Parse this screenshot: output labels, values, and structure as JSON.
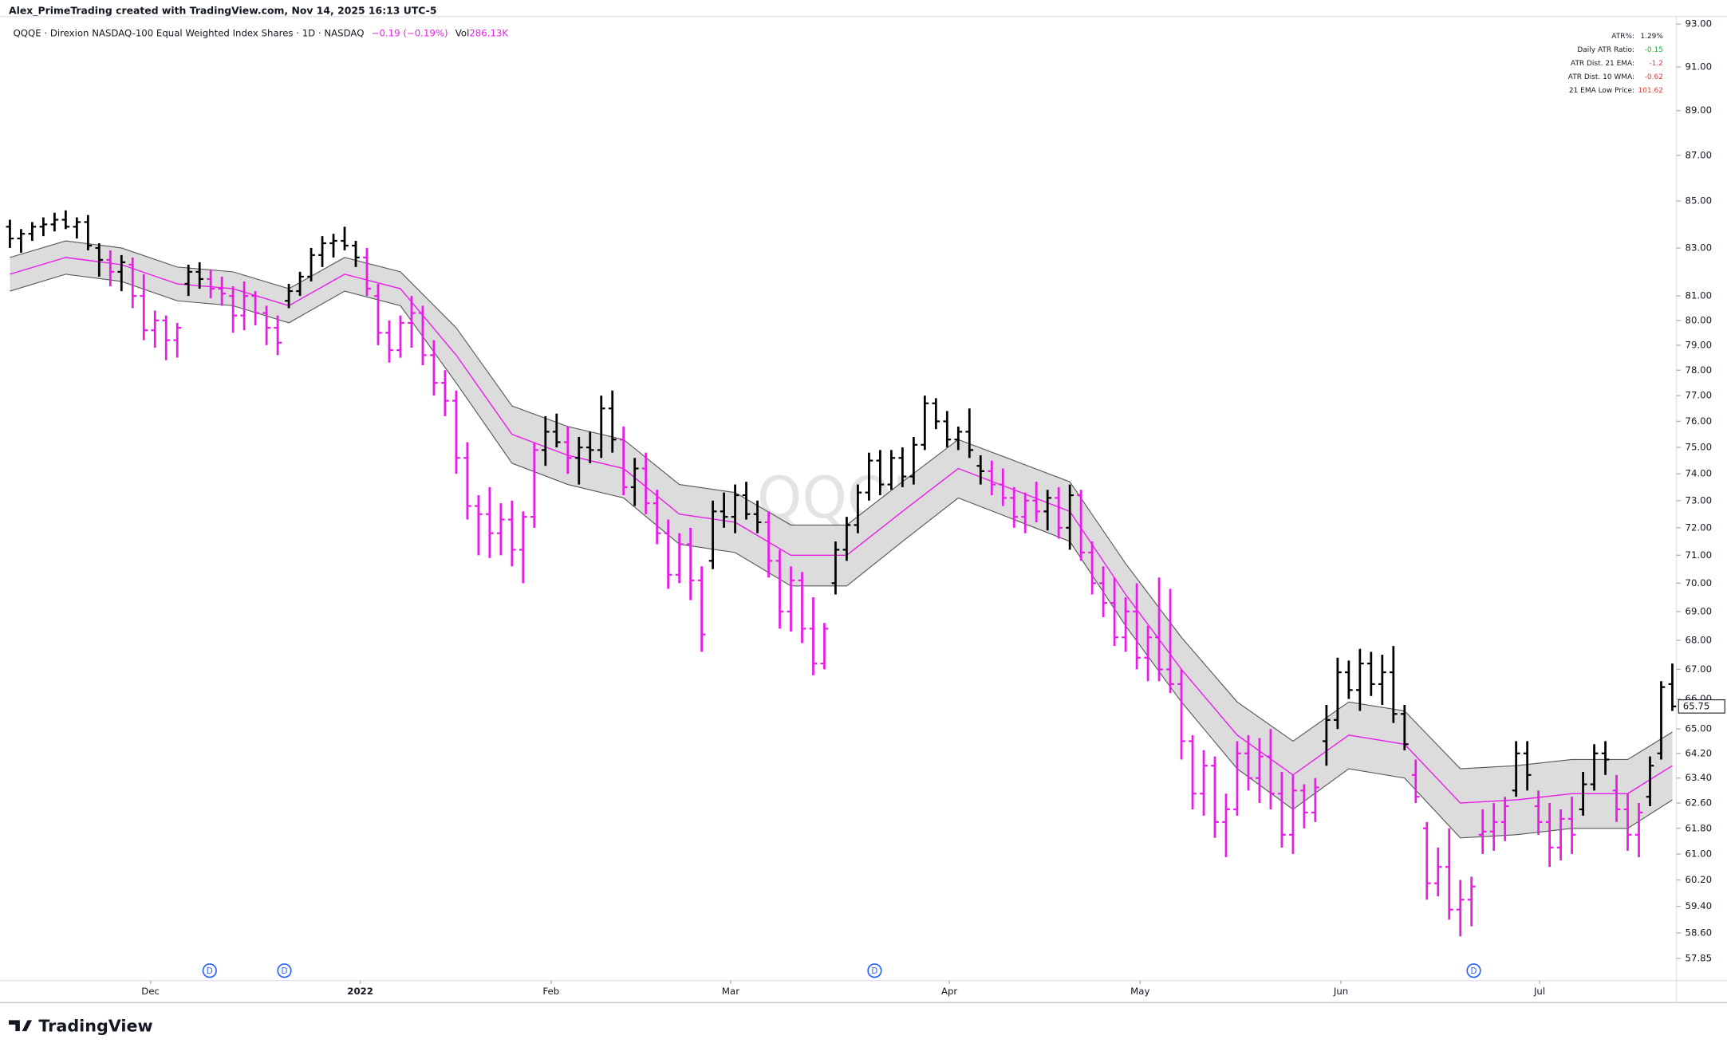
{
  "chart_data": {
    "type": "ohlc",
    "header": "Alex_PrimeTrading created with TradingView.com, Nov 14, 2025 16:13 UTC-5",
    "legend_title": "QQQE · Direxion NASDAQ-100 Equal Weighted Index Shares · 1D · NASDAQ",
    "change": "−0.19 (−0.19%)",
    "volume_label": "Vol",
    "volume": "286.13K",
    "watermark": "QQQE",
    "footer": "TradingView",
    "log_scale": true,
    "up_color": "#000000",
    "down_color": "#e81ce8",
    "band_color": "#dcdcdc",
    "mid_color": "#e81ce8",
    "ylim": [
      57.2,
      93.36
    ],
    "yticks": [
      {
        "value": 93,
        "label": "93.00"
      },
      {
        "value": 91,
        "label": "91.00"
      },
      {
        "value": 89,
        "label": "89.00"
      },
      {
        "value": 87,
        "label": "87.00"
      },
      {
        "value": 85,
        "label": "85.00"
      },
      {
        "value": 83,
        "label": "83.00"
      },
      {
        "value": 81,
        "label": "81.00"
      },
      {
        "value": 80,
        "label": "80.00"
      },
      {
        "value": 79,
        "label": "79.00"
      },
      {
        "value": 78,
        "label": "78.00"
      },
      {
        "value": 77,
        "label": "77.00"
      },
      {
        "value": 76,
        "label": "76.00"
      },
      {
        "value": 75,
        "label": "75.00"
      },
      {
        "value": 74,
        "label": "74.00"
      },
      {
        "value": 73,
        "label": "73.00"
      },
      {
        "value": 72,
        "label": "72.00"
      },
      {
        "value": 71,
        "label": "71.00"
      },
      {
        "value": 70,
        "label": "70.00"
      },
      {
        "value": 69,
        "label": "69.00"
      },
      {
        "value": 68,
        "label": "68.00"
      },
      {
        "value": 67,
        "label": "67.00"
      },
      {
        "value": 66,
        "label": "66.00"
      },
      {
        "value": 65,
        "label": "65.00"
      },
      {
        "value": 64.2,
        "label": "64.20"
      },
      {
        "value": 63.4,
        "label": "63.40"
      },
      {
        "value": 62.6,
        "label": "62.60"
      },
      {
        "value": 61.8,
        "label": "61.80"
      },
      {
        "value": 61,
        "label": "61.00"
      },
      {
        "value": 60.2,
        "label": "60.20"
      },
      {
        "value": 59.4,
        "label": "59.40"
      },
      {
        "value": 58.6,
        "label": "58.60"
      },
      {
        "value": 57.85,
        "label": "57.85"
      }
    ],
    "xlim": [
      -0.5,
      149.7
    ],
    "xticks": [
      {
        "value": 12.6,
        "label": "Dec"
      },
      {
        "value": 31.4,
        "label": "2022"
      },
      {
        "value": 48.5,
        "label": "Feb"
      },
      {
        "value": 64.6,
        "label": "Mar"
      },
      {
        "value": 84.2,
        "label": "Apr"
      },
      {
        "value": 101.3,
        "label": "May"
      },
      {
        "value": 119.3,
        "label": "Jun"
      },
      {
        "value": 137.1,
        "label": "Jul"
      }
    ],
    "events": [
      {
        "index": 17.9,
        "label": "D"
      },
      {
        "index": 24.6,
        "label": "D"
      },
      {
        "index": 77.5,
        "label": "D"
      },
      {
        "index": 131.2,
        "label": "D"
      }
    ],
    "indicator_table": [
      [
        "ATR%:",
        "1.29%"
      ],
      [
        "Daily ATR Ratio:",
        "-0.15"
      ],
      [
        "ATR Dist. 21 EMA:",
        "-1.2"
      ],
      [
        "ATR Dist. 10 WMA:",
        "-0.62"
      ],
      [
        "21 EMA Low Price:",
        "101.62"
      ]
    ],
    "band": {
      "x": [
        0,
        5,
        10,
        15,
        20,
        25,
        30,
        35,
        40,
        45,
        50,
        55,
        60,
        65,
        70,
        75,
        80,
        85,
        90,
        95,
        100,
        105,
        110,
        115,
        120,
        125,
        130,
        135,
        140,
        145,
        149
      ],
      "upper": [
        82.6,
        83.3,
        83.0,
        82.2,
        82.0,
        81.3,
        82.6,
        82.0,
        79.7,
        76.6,
        75.8,
        75.3,
        73.6,
        73.3,
        72.1,
        72.1,
        73.7,
        75.3,
        74.5,
        73.7,
        70.7,
        68.1,
        65.9,
        64.6,
        65.9,
        65.6,
        63.7,
        63.8,
        64.0,
        64.0,
        64.9
      ],
      "mid": [
        81.9,
        82.6,
        82.3,
        81.5,
        81.3,
        80.6,
        81.9,
        81.3,
        78.6,
        75.5,
        74.7,
        74.2,
        72.5,
        72.2,
        71.0,
        71.0,
        72.6,
        74.2,
        73.4,
        72.6,
        69.6,
        67.0,
        64.8,
        63.5,
        64.8,
        64.5,
        62.6,
        62.7,
        62.9,
        62.9,
        63.8
      ],
      "lower": [
        81.2,
        81.9,
        81.6,
        80.8,
        80.6,
        79.9,
        81.2,
        80.6,
        77.5,
        74.4,
        73.6,
        73.1,
        71.4,
        71.1,
        69.9,
        69.9,
        71.5,
        73.1,
        72.3,
        71.5,
        68.5,
        65.9,
        63.7,
        62.4,
        63.7,
        63.4,
        61.5,
        61.6,
        61.8,
        61.8,
        62.7
      ]
    },
    "ohlc": [
      [
        83.9,
        84.2,
        83.0,
        83.4
      ],
      [
        83.4,
        83.8,
        82.8,
        83.6
      ],
      [
        83.6,
        84.1,
        83.3,
        83.9
      ],
      [
        83.9,
        84.3,
        83.5,
        84.0
      ],
      [
        84.0,
        84.5,
        83.7,
        84.2
      ],
      [
        84.2,
        84.6,
        83.8,
        83.9
      ],
      [
        83.9,
        84.3,
        83.4,
        84.1
      ],
      [
        84.1,
        84.4,
        82.9,
        83.1
      ],
      [
        83.0,
        83.2,
        81.8,
        82.5
      ],
      [
        82.5,
        82.9,
        81.4,
        82.0
      ],
      [
        82.0,
        82.7,
        81.2,
        82.4
      ],
      [
        82.3,
        82.6,
        80.5,
        81.0
      ],
      [
        81.0,
        81.9,
        79.2,
        79.6
      ],
      [
        79.6,
        80.4,
        78.9,
        80.0
      ],
      [
        80.0,
        80.2,
        78.4,
        79.2
      ],
      [
        79.2,
        79.9,
        78.5,
        79.7
      ],
      [
        81.5,
        82.3,
        81.0,
        82.0
      ],
      [
        82.0,
        82.4,
        81.3,
        81.7
      ],
      [
        81.7,
        82.1,
        80.9,
        81.3
      ],
      [
        81.3,
        81.8,
        80.6,
        81.1
      ],
      [
        81.0,
        81.4,
        79.5,
        80.2
      ],
      [
        80.2,
        81.6,
        79.6,
        81.0
      ],
      [
        81.0,
        81.2,
        79.8,
        80.3
      ],
      [
        80.3,
        80.6,
        79.0,
        79.7
      ],
      [
        79.7,
        80.2,
        78.6,
        79.1
      ],
      [
        80.8,
        81.5,
        80.5,
        81.2
      ],
      [
        81.2,
        82.0,
        81.0,
        81.8
      ],
      [
        81.8,
        83.0,
        81.6,
        82.7
      ],
      [
        82.7,
        83.5,
        82.2,
        83.2
      ],
      [
        83.2,
        83.6,
        82.6,
        83.3
      ],
      [
        83.3,
        83.9,
        82.9,
        83.1
      ],
      [
        83.1,
        83.3,
        82.2,
        82.6
      ],
      [
        82.6,
        83.0,
        81.0,
        81.3
      ],
      [
        81.0,
        81.5,
        79.0,
        79.5
      ],
      [
        79.5,
        80.0,
        78.3,
        78.8
      ],
      [
        78.8,
        80.2,
        78.5,
        79.9
      ],
      [
        79.9,
        81.0,
        78.9,
        80.3
      ],
      [
        80.3,
        80.6,
        78.2,
        78.6
      ],
      [
        78.6,
        79.2,
        77.0,
        77.5
      ],
      [
        77.5,
        78.0,
        76.2,
        76.8
      ],
      [
        76.8,
        77.2,
        74.0,
        74.6
      ],
      [
        74.6,
        75.2,
        72.3,
        72.8
      ],
      [
        72.8,
        73.2,
        71.0,
        72.5
      ],
      [
        72.5,
        73.5,
        70.9,
        71.8
      ],
      [
        71.8,
        72.9,
        71.0,
        72.3
      ],
      [
        72.3,
        73.0,
        70.6,
        71.2
      ],
      [
        71.2,
        72.6,
        70.0,
        72.4
      ],
      [
        72.4,
        75.2,
        72.0,
        74.9
      ],
      [
        74.9,
        76.2,
        74.3,
        75.6
      ],
      [
        75.6,
        76.3,
        75.0,
        75.2
      ],
      [
        75.2,
        75.8,
        74.0,
        74.6
      ],
      [
        74.6,
        75.4,
        73.6,
        75.0
      ],
      [
        75.0,
        75.6,
        74.4,
        74.9
      ],
      [
        74.9,
        77.0,
        74.6,
        76.5
      ],
      [
        76.5,
        77.2,
        74.8,
        75.3
      ],
      [
        75.3,
        75.8,
        73.2,
        73.5
      ],
      [
        73.5,
        74.6,
        72.8,
        74.2
      ],
      [
        74.2,
        74.8,
        72.5,
        72.9
      ],
      [
        72.9,
        73.4,
        71.4,
        71.8
      ],
      [
        71.8,
        72.3,
        69.8,
        70.3
      ],
      [
        70.3,
        71.8,
        70.0,
        71.4
      ],
      [
        71.4,
        72.0,
        69.4,
        70.1
      ],
      [
        70.1,
        70.6,
        67.6,
        68.2
      ],
      [
        70.8,
        73.0,
        70.5,
        72.6
      ],
      [
        72.6,
        73.3,
        72.0,
        72.4
      ],
      [
        72.4,
        73.6,
        71.8,
        73.2
      ],
      [
        73.2,
        73.7,
        72.3,
        72.5
      ],
      [
        72.5,
        73.0,
        71.8,
        72.2
      ],
      [
        72.2,
        72.6,
        70.2,
        70.8
      ],
      [
        70.8,
        71.2,
        68.4,
        69.0
      ],
      [
        69.0,
        70.6,
        68.3,
        70.1
      ],
      [
        70.1,
        70.4,
        67.9,
        68.4
      ],
      [
        68.4,
        69.5,
        66.8,
        67.2
      ],
      [
        67.2,
        68.6,
        67.0,
        68.4
      ],
      [
        70.0,
        71.5,
        69.6,
        71.2
      ],
      [
        71.2,
        72.4,
        70.8,
        72.1
      ],
      [
        72.1,
        73.6,
        71.8,
        73.3
      ],
      [
        73.3,
        74.8,
        73.0,
        74.5
      ],
      [
        74.5,
        74.9,
        73.2,
        73.6
      ],
      [
        73.6,
        74.9,
        73.4,
        74.6
      ],
      [
        74.6,
        75.0,
        73.5,
        73.9
      ],
      [
        73.9,
        75.4,
        73.6,
        75.1
      ],
      [
        75.1,
        77.0,
        74.9,
        76.7
      ],
      [
        76.7,
        76.9,
        75.7,
        76.0
      ],
      [
        76.0,
        76.4,
        75.0,
        75.3
      ],
      [
        75.3,
        75.8,
        74.9,
        75.6
      ],
      [
        75.6,
        76.5,
        74.6,
        74.9
      ],
      [
        74.3,
        74.7,
        73.6,
        74.1
      ],
      [
        74.1,
        74.5,
        73.2,
        73.6
      ],
      [
        73.6,
        74.2,
        72.8,
        73.1
      ],
      [
        73.1,
        73.5,
        72.0,
        72.4
      ],
      [
        72.4,
        73.3,
        71.8,
        73.0
      ],
      [
        73.0,
        73.7,
        72.2,
        72.6
      ],
      [
        72.6,
        73.4,
        71.9,
        73.1
      ],
      [
        73.1,
        73.5,
        71.6,
        72.0
      ],
      [
        72.0,
        73.6,
        71.2,
        73.2
      ],
      [
        73.2,
        73.4,
        70.8,
        71.1
      ],
      [
        71.1,
        71.5,
        69.6,
        70.0
      ],
      [
        70.0,
        70.6,
        68.8,
        69.3
      ],
      [
        69.3,
        70.2,
        67.8,
        68.1
      ],
      [
        68.1,
        69.5,
        67.6,
        69.0
      ],
      [
        69.0,
        70.0,
        67.0,
        67.4
      ],
      [
        67.4,
        68.5,
        66.6,
        68.1
      ],
      [
        68.1,
        70.2,
        66.6,
        67.0
      ],
      [
        67.0,
        69.8,
        66.2,
        66.5
      ],
      [
        66.5,
        67.0,
        64.0,
        64.6
      ],
      [
        64.6,
        64.8,
        62.4,
        62.9
      ],
      [
        62.9,
        64.3,
        62.2,
        63.8
      ],
      [
        63.8,
        64.1,
        61.5,
        62.0
      ],
      [
        62.0,
        62.9,
        60.9,
        62.4
      ],
      [
        62.4,
        64.6,
        62.2,
        64.2
      ],
      [
        64.2,
        64.8,
        63.0,
        63.4
      ],
      [
        63.4,
        64.7,
        62.6,
        64.1
      ],
      [
        64.1,
        65.0,
        62.4,
        62.9
      ],
      [
        62.9,
        63.6,
        61.2,
        61.6
      ],
      [
        61.6,
        63.5,
        61.0,
        63.0
      ],
      [
        63.0,
        63.2,
        61.8,
        62.3
      ],
      [
        62.3,
        63.4,
        62.0,
        63.1
      ],
      [
        64.6,
        65.8,
        63.8,
        65.3
      ],
      [
        65.3,
        67.4,
        65.0,
        66.9
      ],
      [
        66.9,
        67.3,
        66.0,
        66.3
      ],
      [
        66.3,
        67.7,
        65.6,
        67.2
      ],
      [
        67.2,
        67.6,
        66.1,
        66.5
      ],
      [
        66.5,
        67.5,
        65.8,
        66.9
      ],
      [
        66.9,
        67.8,
        65.2,
        65.5
      ],
      [
        65.5,
        65.8,
        64.3,
        64.5
      ],
      [
        63.5,
        64.0,
        62.6,
        62.8
      ],
      [
        61.8,
        62.0,
        59.6,
        60.1
      ],
      [
        60.1,
        61.2,
        59.7,
        60.6
      ],
      [
        60.6,
        61.8,
        59.0,
        59.3
      ],
      [
        59.3,
        60.2,
        58.5,
        59.6
      ],
      [
        59.6,
        60.3,
        58.8,
        60.0
      ],
      [
        61.6,
        62.4,
        61.0,
        61.7
      ],
      [
        61.7,
        62.6,
        61.1,
        62.0
      ],
      [
        62.0,
        62.8,
        61.4,
        62.5
      ],
      [
        63.0,
        64.6,
        62.8,
        64.2
      ],
      [
        64.2,
        64.6,
        63.0,
        63.5
      ],
      [
        62.5,
        63.0,
        61.6,
        62.0
      ],
      [
        62.0,
        62.6,
        60.6,
        61.2
      ],
      [
        61.2,
        62.4,
        60.8,
        62.1
      ],
      [
        62.1,
        62.8,
        61.0,
        61.6
      ],
      [
        62.4,
        63.6,
        62.2,
        63.2
      ],
      [
        63.2,
        64.5,
        63.0,
        64.2
      ],
      [
        64.2,
        64.6,
        63.5,
        64.0
      ],
      [
        63.0,
        63.5,
        62.0,
        62.4
      ],
      [
        62.4,
        62.9,
        61.1,
        61.6
      ],
      [
        61.6,
        62.6,
        60.9,
        62.3
      ],
      [
        62.8,
        64.1,
        62.5,
        63.8
      ],
      [
        64.2,
        66.6,
        64.0,
        66.4
      ],
      [
        66.5,
        67.2,
        65.6,
        65.75
      ]
    ]
  }
}
